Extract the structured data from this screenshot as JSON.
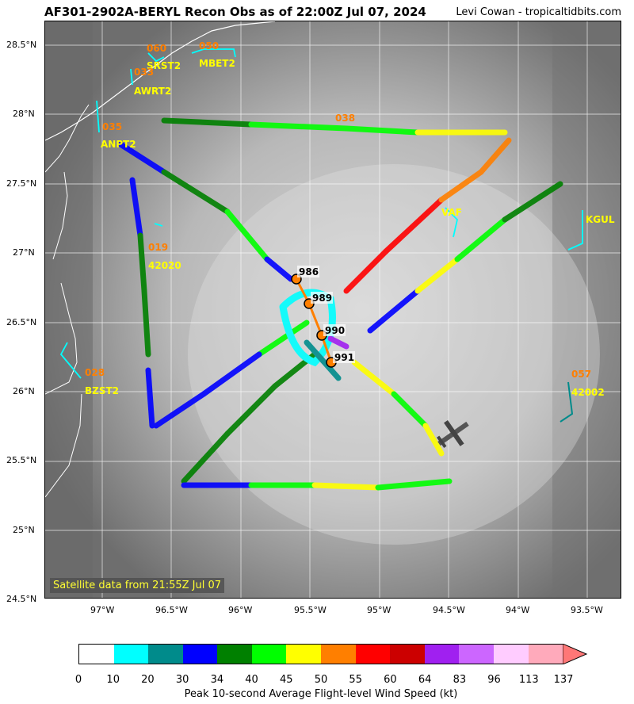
{
  "header": {
    "title": "AF301-2902A-BERYL Recon Obs as of 22:00Z Jul 07, 2024",
    "credit": "Levi Cowan - tropicaltidbits.com"
  },
  "map": {
    "lon_labels": [
      "97°W",
      "96.5°W",
      "96°W",
      "95.5°W",
      "95°W",
      "94.5°W",
      "94°W",
      "93.5°W"
    ],
    "lat_labels": [
      "28.5°N",
      "28°N",
      "27.5°N",
      "27°N",
      "26.5°N",
      "26°N",
      "25.5°N",
      "25°N",
      "24.5°N"
    ],
    "satellite_note": "Satellite data from 21:55Z Jul 07",
    "pressure_obs": [
      {
        "value": "986"
      },
      {
        "value": "989"
      },
      {
        "value": "990"
      },
      {
        "value": "991"
      }
    ],
    "stations": [
      {
        "name": "SRST2",
        "value": "060"
      },
      {
        "name": "MBET2",
        "value": "050"
      },
      {
        "name": "AWRT2",
        "value": "033"
      },
      {
        "name": "ANPT2",
        "value": "035"
      },
      {
        "name": "42020",
        "value": "019"
      },
      {
        "name": "BZST2",
        "value": "028"
      },
      {
        "name": "42002",
        "value": "057"
      },
      {
        "name": "KGUL",
        "value": ""
      },
      {
        "name": "",
        "value": "038"
      },
      {
        "name": "VAF",
        "value": ""
      }
    ]
  },
  "colorbar": {
    "label": "Peak 10-second Average Flight-level Wind Speed (kt)",
    "ticks": [
      "0",
      "10",
      "20",
      "30",
      "34",
      "40",
      "45",
      "50",
      "55",
      "60",
      "64",
      "83",
      "96",
      "113",
      "137"
    ],
    "colors": [
      "#ffffff",
      "#00ffff",
      "#008b8b",
      "#0000ff",
      "#008000",
      "#00ff00",
      "#ffff00",
      "#ff7f00",
      "#ff0000",
      "#cc0000",
      "#a020f0",
      "#cc66ff",
      "#ffccff",
      "#ffaabb"
    ],
    "arrow_color": "#ff7777"
  }
}
